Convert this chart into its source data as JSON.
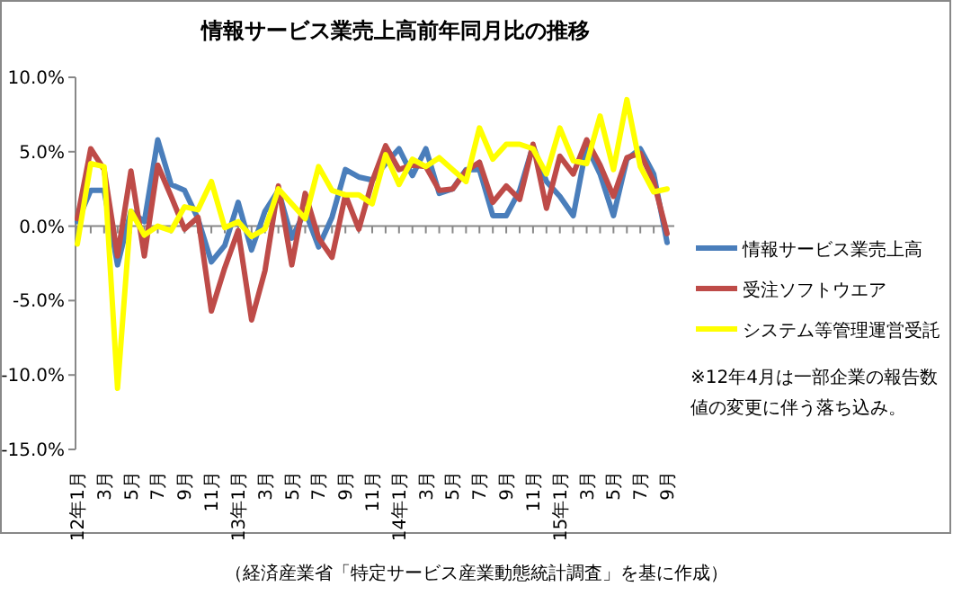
{
  "chart_data": {
    "type": "line",
    "title": "情報サービス業売上高前年同月比の推移",
    "categories": [
      "12年1月",
      null,
      "3月",
      null,
      "5月",
      null,
      "7月",
      null,
      "9月",
      null,
      "11月",
      null,
      "13年1月",
      null,
      "3月",
      null,
      "5月",
      null,
      "7月",
      null,
      "9月",
      null,
      "11月",
      null,
      "14年1月",
      null,
      "3月",
      null,
      "5月",
      null,
      "7月",
      null,
      "9月",
      null,
      "11月",
      null,
      "15年1月",
      null,
      "3月",
      null,
      "5月",
      null,
      "7月",
      null,
      "9月"
    ],
    "series": [
      {
        "name": "情報サービス業売上高",
        "color": "#4a7ebb",
        "values": [
          0.3,
          2.4,
          2.4,
          -2.6,
          1.0,
          0.3,
          5.8,
          2.8,
          2.4,
          0.5,
          -2.4,
          -1.3,
          1.6,
          -1.6,
          1.0,
          2.4,
          -0.8,
          1.0,
          -1.4,
          0.6,
          3.8,
          3.3,
          3.1,
          4.2,
          5.2,
          3.4,
          5.2,
          2.2,
          2.5,
          3.8,
          3.8,
          0.7,
          0.7,
          2.4,
          5.4,
          3.0,
          2.0,
          0.7,
          5.4,
          3.5,
          0.7,
          4.5,
          5.2,
          3.5,
          -1.1
        ]
      },
      {
        "name": "受注ソフトウエア",
        "color": "#be4b48",
        "values": [
          0.5,
          5.2,
          3.8,
          -2.0,
          3.7,
          -2.0,
          4.1,
          2.0,
          -0.2,
          0.6,
          -5.7,
          -2.8,
          -0.3,
          -6.3,
          -3.0,
          2.7,
          -2.6,
          2.2,
          -0.8,
          -2.1,
          2.1,
          -0.2,
          3.0,
          5.4,
          3.8,
          4.1,
          4.0,
          2.4,
          2.5,
          3.7,
          4.3,
          1.6,
          2.7,
          1.8,
          5.5,
          1.2,
          4.7,
          3.5,
          5.8,
          4.1,
          2.0,
          4.6,
          4.9,
          3.0,
          -0.5
        ]
      },
      {
        "name": "システム等管理運営受託",
        "color": "#ffff00",
        "values": [
          -1.2,
          4.2,
          4.0,
          -10.9,
          1.0,
          -0.6,
          0.0,
          -0.3,
          1.3,
          1.1,
          3.0,
          -0.1,
          0.3,
          -0.7,
          -0.2,
          2.5,
          1.5,
          0.5,
          4.0,
          2.4,
          2.1,
          2.1,
          1.5,
          4.8,
          2.8,
          4.5,
          4.0,
          4.6,
          3.8,
          3.0,
          6.6,
          4.5,
          5.5,
          5.5,
          5.2,
          3.5,
          6.6,
          4.4,
          4.2,
          7.4,
          3.8,
          8.5,
          4.0,
          2.3,
          2.5
        ]
      }
    ],
    "ylim": [
      -15,
      10
    ],
    "yticks": [
      {
        "value": -15,
        "label": "-15.0%"
      },
      {
        "value": -10,
        "label": "-10.0%"
      },
      {
        "value": -5,
        "label": "-5.0%"
      },
      {
        "value": 0,
        "label": "0.0%"
      },
      {
        "value": 5,
        "label": "5.0%"
      },
      {
        "value": 10,
        "label": "10.0%"
      }
    ],
    "legend": "right",
    "marker": "none",
    "line_style": "solid",
    "annotations": [
      "※12年4月は一部企業の報告数値の変更に伴う落ち込み。",
      "（経済産業省「特定サービス産業動態統計調査」を基に作成）"
    ]
  }
}
